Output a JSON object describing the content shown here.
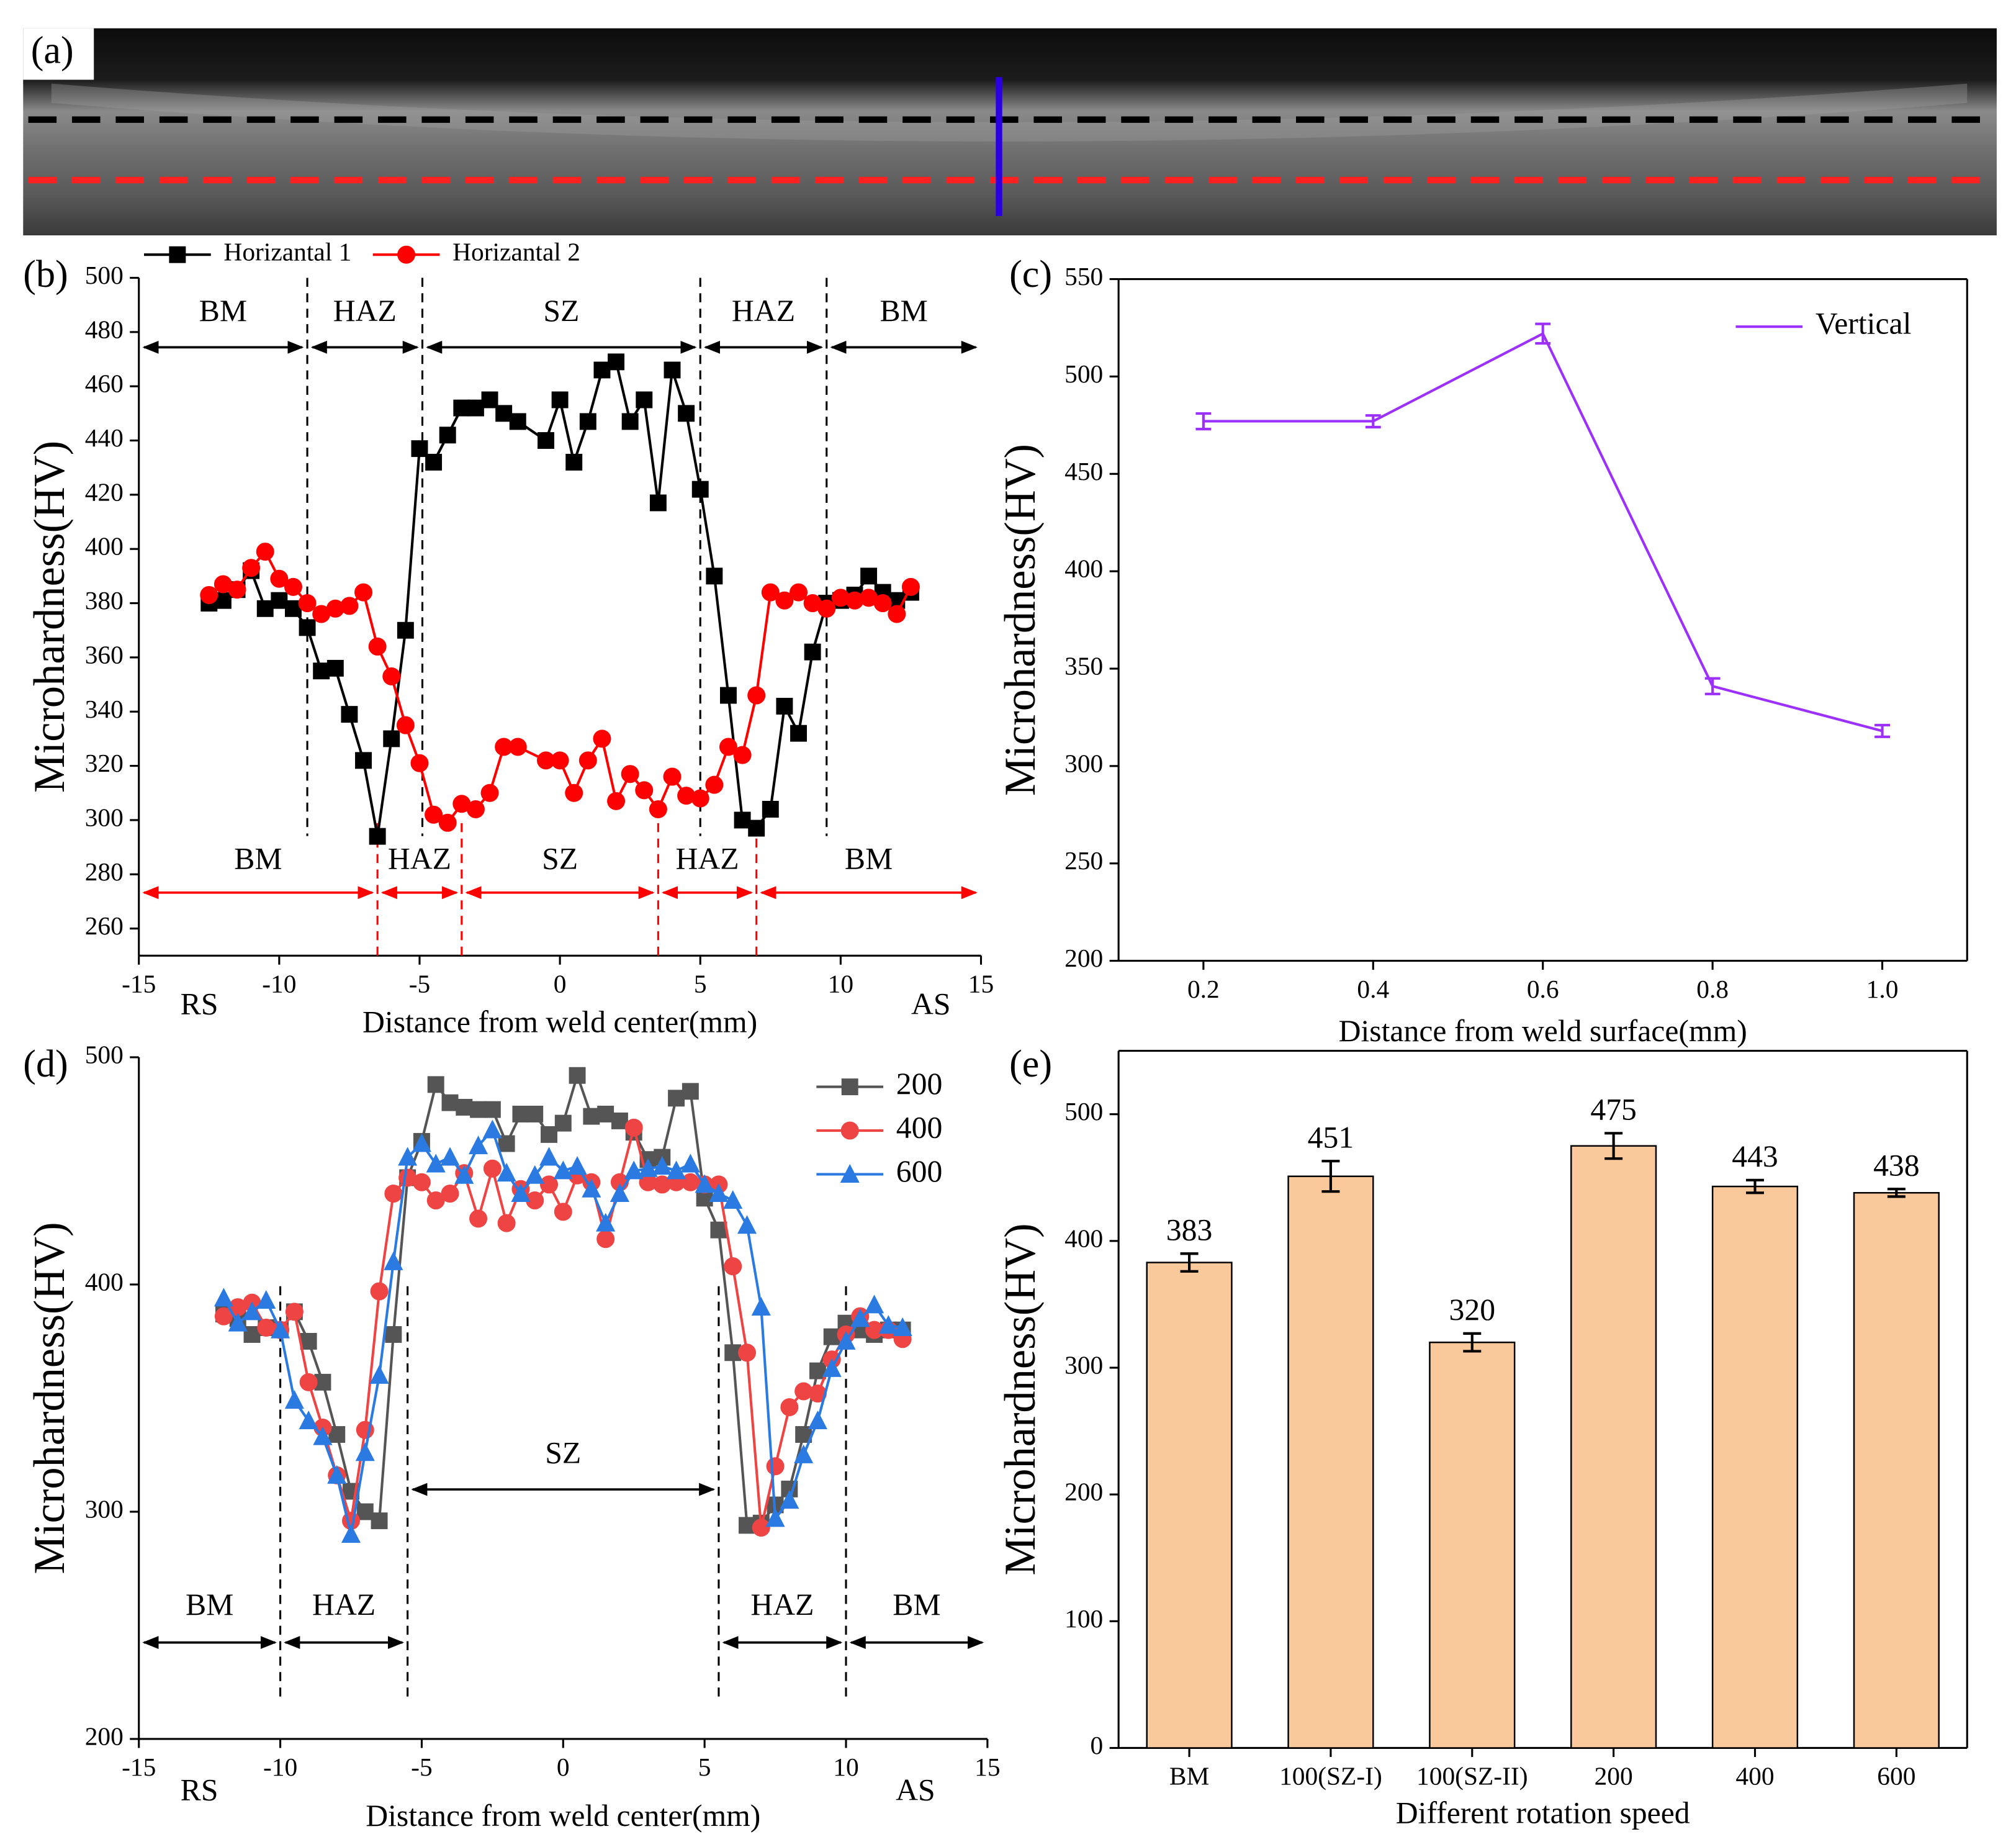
{
  "chart_data": [
    {
      "type": "image",
      "label": "(a)"
    },
    {
      "type": "line",
      "label": "(b)",
      "ylabel": "Microhardness(HV)",
      "xlabel": "Distance from weld center(mm)",
      "xlim": [
        -15,
        15
      ],
      "xticks": [
        -15,
        -10,
        -5,
        0,
        5,
        10,
        15
      ],
      "ylim": [
        250,
        500
      ],
      "yticks": [
        260,
        280,
        300,
        320,
        340,
        360,
        380,
        400,
        420,
        440,
        460,
        480,
        500
      ],
      "legend": "top-outside",
      "side_labels": [
        "RS",
        "AS"
      ],
      "zone_groups": [
        {
          "color": "#000000",
          "boundaries": [
            -9,
            -4.9,
            5,
            9.5
          ],
          "labels": [
            "BM",
            "HAZ",
            "SZ",
            "HAZ",
            "BM"
          ]
        },
        {
          "color": "#ff0000",
          "boundaries": [
            -6.5,
            -3.5,
            3.5,
            7
          ],
          "labels": [
            "BM",
            "HAZ",
            "SZ",
            "HAZ",
            "BM"
          ]
        }
      ],
      "series": [
        {
          "name": "Horizantal 1",
          "color": "#000000",
          "marker": "square",
          "x": [
            -12.5,
            -12,
            -11.5,
            -11,
            -10.5,
            -10,
            -9.5,
            -9,
            -8.5,
            -8,
            -7.5,
            -7,
            -6.5,
            -6,
            -5.5,
            -5,
            -4.5,
            -4,
            -3.5,
            -3,
            -2.5,
            -2,
            -1.5,
            -0.5,
            0,
            0.5,
            1,
            1.5,
            2,
            2.5,
            3,
            3.5,
            4,
            4.5,
            5,
            5.5,
            6,
            6.5,
            7,
            7.5,
            8,
            8.5,
            9,
            9.5,
            10,
            10.5,
            11,
            11.5,
            12,
            12.5
          ],
          "values": [
            380,
            381,
            385,
            392,
            378,
            381,
            378,
            371,
            355,
            356,
            339,
            322,
            294,
            330,
            370,
            437,
            432,
            442,
            452,
            452,
            455,
            450,
            447,
            440,
            455,
            432,
            447,
            466,
            469,
            447,
            455,
            417,
            466,
            450,
            422,
            390,
            346,
            300,
            297,
            304,
            342,
            332,
            362,
            380,
            381,
            383,
            390,
            384,
            381,
            384
          ]
        },
        {
          "name": "Horizantal 2",
          "color": "#ff0000",
          "marker": "circle",
          "x": [
            -12.5,
            -12,
            -11.5,
            -11,
            -10.5,
            -10,
            -9.5,
            -9,
            -8.5,
            -8,
            -7.5,
            -7,
            -6.5,
            -6,
            -5.5,
            -5,
            -4.5,
            -4,
            -3.5,
            -3,
            -2.5,
            -2,
            -1.5,
            -0.5,
            0,
            0.5,
            1,
            1.5,
            2,
            2.5,
            3,
            3.5,
            4,
            4.5,
            5,
            5.5,
            6,
            6.5,
            7,
            7.5,
            8,
            8.5,
            9,
            9.5,
            10,
            10.5,
            11,
            11.5,
            12,
            12.5
          ],
          "values": [
            383,
            387,
            385,
            393,
            399,
            389,
            386,
            380,
            376,
            378,
            379,
            384,
            364,
            353,
            335,
            321,
            302,
            299,
            306,
            304,
            310,
            327,
            327,
            322,
            322,
            310,
            322,
            330,
            307,
            317,
            311,
            304,
            316,
            309,
            308,
            313,
            327,
            324,
            346,
            384,
            381,
            384,
            380,
            378,
            382,
            381,
            382,
            380,
            376,
            386
          ]
        }
      ]
    },
    {
      "type": "line",
      "label": "(c)",
      "ylabel": "Microhardness(HV)",
      "xlabel": "Distance from weld surface(mm)",
      "xlim": [
        0.1,
        1.1
      ],
      "xticks": [
        0.2,
        0.4,
        0.6,
        0.8,
        {
          "value": 1,
          "label": "1.0"
        }
      ],
      "ylim": [
        200,
        550
      ],
      "yticks": [
        200,
        250,
        300,
        350,
        400,
        450,
        500,
        550
      ],
      "legend": "top-right",
      "series": [
        {
          "name": "Vertical",
          "color": "#9b30ff",
          "x": [
            0.2,
            0.4,
            0.6,
            0.8,
            1
          ],
          "values": [
            477,
            477,
            522,
            341,
            318
          ],
          "errors": [
            4,
            3,
            5,
            4,
            3
          ]
        }
      ]
    },
    {
      "type": "line",
      "label": "(d)",
      "ylabel": "Microhardness(HV)",
      "xlabel": "Distance from weld center(mm)",
      "xlim": [
        -15,
        15
      ],
      "xticks": [
        -15,
        -10,
        -5,
        0,
        5,
        10,
        15
      ],
      "ylim": [
        200,
        500
      ],
      "yticks": [
        200,
        300,
        400,
        500
      ],
      "legend": "top-right",
      "side_labels": [
        "RS",
        "AS"
      ],
      "zone_groups": [
        {
          "color": "#000000",
          "boundaries": [
            -10,
            -5.5,
            5.5,
            10
          ],
          "labels": [
            "BM",
            "HAZ",
            "SZ",
            "HAZ",
            "BM"
          ]
        }
      ],
      "series": [
        {
          "name": "200",
          "color": "#555555",
          "marker": "square",
          "x": [
            -12,
            -11.5,
            -11,
            -10.5,
            -10,
            -9.5,
            -9,
            -8.5,
            -8,
            -7.5,
            -7,
            -6.5,
            -6,
            -5.5,
            -5,
            -4.5,
            -4,
            -3.5,
            -3,
            -2.5,
            -2,
            -1.5,
            -1,
            -0.5,
            0,
            0.5,
            1,
            1.5,
            2,
            2.5,
            3,
            3.5,
            4,
            4.5,
            5,
            5.5,
            6,
            6.5,
            7,
            7.5,
            8,
            8.5,
            9,
            9.5,
            10,
            10.5,
            11,
            11.5,
            12
          ],
          "values": [
            387,
            385,
            378,
            381,
            380,
            388,
            375,
            357,
            334,
            309,
            300,
            296,
            378,
            447,
            463,
            488,
            480,
            478,
            477,
            477,
            462,
            475,
            475,
            466,
            471,
            492,
            474,
            475,
            472,
            467,
            455,
            456,
            482,
            485,
            438,
            424,
            370,
            294,
            295,
            303,
            310,
            334,
            362,
            377,
            383,
            380,
            378,
            380,
            380
          ]
        },
        {
          "name": "400",
          "color": "#ee4444",
          "marker": "circle",
          "x": [
            -12,
            -11.5,
            -11,
            -10.5,
            -10,
            -9.5,
            -9,
            -8.5,
            -8,
            -7.5,
            -7,
            -6.5,
            -6,
            -5.5,
            -5,
            -4.5,
            -4,
            -3.5,
            -3,
            -2.5,
            -2,
            -1.5,
            -1,
            -0.5,
            0,
            0.5,
            1,
            1.5,
            2,
            2.5,
            3,
            3.5,
            4,
            4.5,
            5,
            5.5,
            6,
            6.5,
            7,
            7.5,
            8,
            8.5,
            9,
            9.5,
            10,
            10.5,
            11,
            11.5,
            12
          ],
          "values": [
            386,
            390,
            392,
            381,
            380,
            388,
            357,
            337,
            316,
            296,
            336,
            397,
            440,
            447,
            445,
            437,
            440,
            449,
            429,
            451,
            427,
            442,
            437,
            444,
            432,
            448,
            445,
            420,
            445,
            469,
            445,
            444,
            445,
            445,
            444,
            444,
            408,
            370,
            293,
            320,
            346,
            353,
            352,
            367,
            378,
            386,
            380,
            380,
            376
          ]
        },
        {
          "name": "600",
          "color": "#2a7ae2",
          "marker": "triangle",
          "x": [
            -12,
            -11.5,
            -11,
            -10.5,
            -10,
            -9.5,
            -9,
            -8.5,
            -8,
            -7.5,
            -7,
            -6.5,
            -6,
            -5.5,
            -5,
            -4.5,
            -4,
            -3.5,
            -3,
            -2.5,
            -2,
            -1.5,
            -1,
            -0.5,
            0,
            0.5,
            1,
            1.5,
            2,
            2.5,
            3,
            3.5,
            4,
            4.5,
            5,
            5.5,
            6,
            6.5,
            7,
            7.5,
            8,
            8.5,
            9,
            9.5,
            10,
            10.5,
            11,
            11.5,
            12
          ],
          "values": [
            394,
            383,
            388,
            393,
            380,
            349,
            340,
            333,
            316,
            290,
            326,
            360,
            410,
            456,
            462,
            453,
            456,
            448,
            461,
            468,
            449,
            440,
            448,
            456,
            450,
            452,
            442,
            427,
            440,
            450,
            451,
            452,
            450,
            453,
            444,
            440,
            437,
            426,
            390,
            297,
            305,
            325,
            340,
            363,
            375,
            385,
            391,
            382,
            381
          ]
        }
      ]
    },
    {
      "type": "bar",
      "label": "(e)",
      "ylabel": "Microhardness(HV)",
      "xlabel": "Different rotation speed",
      "ylim": [
        0,
        550
      ],
      "yticks": [
        0,
        100,
        200,
        300,
        400,
        500
      ],
      "categories": [
        "BM",
        "100(SZ-I)",
        "100(SZ-II)",
        "200",
        "400",
        "600"
      ],
      "values": [
        383,
        451,
        320,
        475,
        443,
        438
      ],
      "errors": [
        7,
        12,
        7,
        10,
        5,
        3
      ],
      "color": "#f9c89b"
    }
  ]
}
